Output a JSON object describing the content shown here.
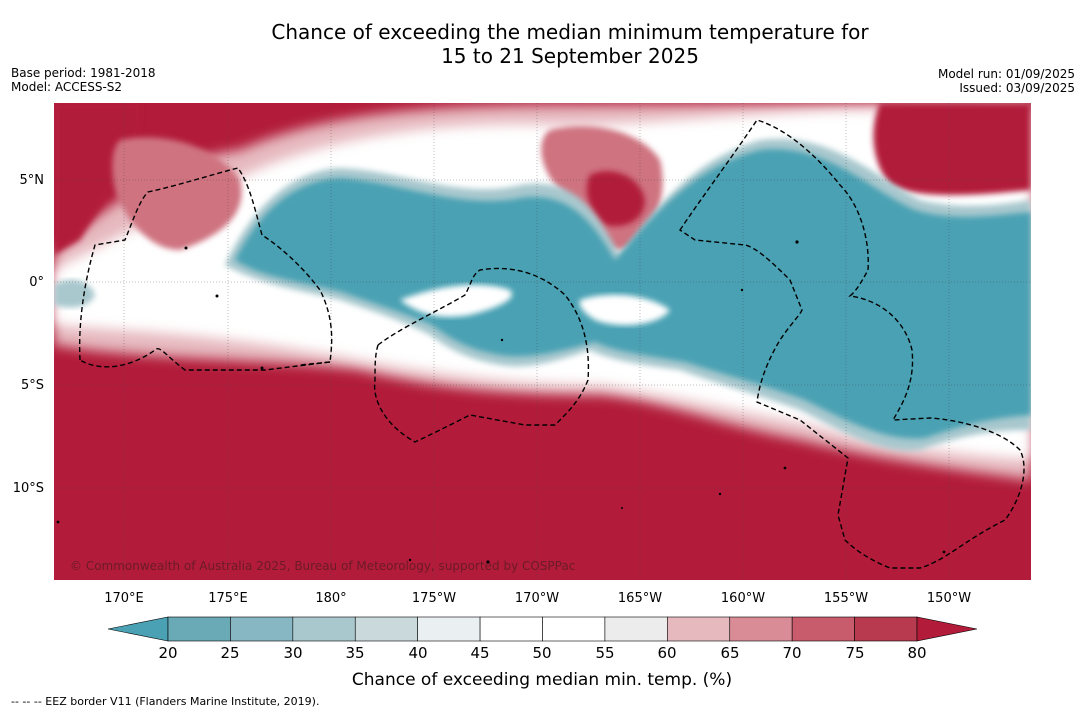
{
  "title": {
    "line1": "Chance of exceeding the median minimum temperature for",
    "line2": "15 to 21 September 2025"
  },
  "meta_left": {
    "base_period": "Base period: 1981-2018",
    "model": "Model: ACCESS-S2"
  },
  "meta_right": {
    "model_run": "Model run: 01/09/2025",
    "issued": "Issued: 03/09/2025"
  },
  "map": {
    "lat_labels": [
      "5°N",
      "0°",
      "5°S",
      "10°S"
    ],
    "lon_labels": [
      "170°E",
      "175°E",
      "180°",
      "175°W",
      "170°W",
      "165°W",
      "160°W",
      "155°W",
      "150°W"
    ],
    "copyright": "© Commonwealth of Australia 2025, Bureau of Meteorology, supported by COSPPac",
    "colors": {
      "hot": "#b21c3a",
      "warm": "#cf7380",
      "mild_warm": "#e6b9bf",
      "cool": "#4aa1b3",
      "mild_cool": "#a8c8ce",
      "neutral": "#ffffff",
      "near_neutral": "#ececec"
    }
  },
  "colorbar": {
    "labels": [
      "20",
      "25",
      "30",
      "35",
      "40",
      "45",
      "50",
      "55",
      "60",
      "65",
      "70",
      "75",
      "80"
    ],
    "colors": [
      "#4aa1b3",
      "#6aa9b6",
      "#88b7c4",
      "#a8c8ce",
      "#c9d9dc",
      "#eaf0f2",
      "#ffffff",
      "#ffffff",
      "#ececec",
      "#e6b9bf",
      "#d98c95",
      "#c85c6d",
      "#b83a4f",
      "#b21c3a"
    ],
    "title": "Chance of exceeding median min. temp. (%)"
  },
  "footer": "--  --  -- EEZ border V11 (Flanders Marine Institute, 2019)."
}
